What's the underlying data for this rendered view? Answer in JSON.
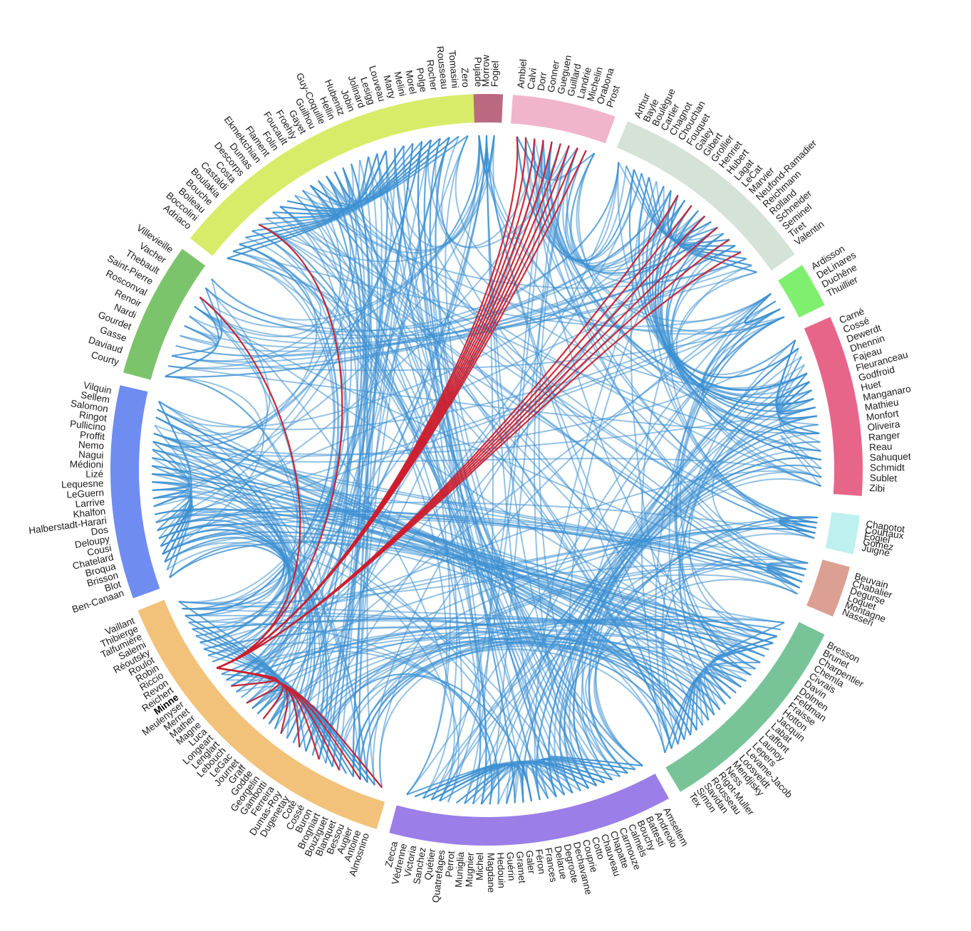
{
  "diagram": {
    "type": "hierarchical-edge-bundling",
    "edge_colors": {
      "normal": "#3d8fd1",
      "highlight": "#cc1f2e"
    },
    "highlighted_node": "Minne",
    "groups": [
      {
        "color": "#b96a80",
        "nodes": [
          "Pujade",
          "Morrow",
          "Fogiel"
        ]
      },
      {
        "color": "#f0b5cc",
        "nodes": [
          "Ambiel",
          "Calvi",
          "Dorr",
          "Gonner",
          "Gueguen",
          "Guillard",
          "Landrie",
          "Michelin",
          "Orabona",
          "Prost"
        ]
      },
      {
        "color": "#d5e2d8",
        "nodes": [
          "Arthur",
          "Bayle",
          "Boulègue",
          "Cartier",
          "Chagnot",
          "Chouchan",
          "Fouquet",
          "Galey",
          "Gibert",
          "Grollier",
          "Henriet",
          "Hubert",
          "Lagat",
          "LeCat",
          "Marvier",
          "Neufond-Ramadier",
          "Reichmann",
          "Rolland",
          "Schneider",
          "Seminel",
          "Tiret",
          "Valentin"
        ]
      },
      {
        "color": "#7ef06e",
        "nodes": [
          "Ardisson",
          "DeLinares",
          "Duchêne",
          "Thuillier"
        ]
      },
      {
        "color": "#e8658a",
        "nodes": [
          "Carné",
          "Cossé",
          "Dewerdt",
          "Dhennin",
          "Fajeau",
          "Fleuranceau",
          "Godfroid",
          "Huet",
          "Manganaro",
          "Mathieu",
          "Monfort",
          "Oliveira",
          "Ranger",
          "Reau",
          "Sahuquet",
          "Schmidt",
          "Sublet",
          "Zibi"
        ]
      },
      {
        "color": "#bff0f0",
        "nodes": [
          "Chapotot",
          "Courtaux",
          "Fogiel",
          "Gomez",
          "Juigné"
        ]
      },
      {
        "color": "#dba093",
        "nodes": [
          "Beuvain",
          "Chabalier",
          "Degurse",
          "Loquet",
          "Montagne",
          "Nasseri"
        ]
      },
      {
        "color": "#78c498",
        "nodes": [
          "Bresson",
          "Brunet",
          "Charpentier",
          "Chemla",
          "Civrais",
          "Davin",
          "Dolmen",
          "Feldman",
          "Fraisse",
          "Hotton",
          "Jacquin",
          "Labat",
          "Laffont",
          "Launoy",
          "Lepers",
          "Levame-Jacob",
          "Loosveldt",
          "Mendjisky",
          "Ness",
          "Rigot-Muller",
          "Rousseau",
          "Savidan",
          "Simon",
          "Tex"
        ]
      },
      {
        "color": "#9b7ee8",
        "nodes": [
          "Amsellem",
          "Andreolo",
          "Battesti",
          "Bouchy",
          "Calmels",
          "Carmouze",
          "Chapatte",
          "Chauveau",
          "Cotto",
          "Couprie",
          "Dechavanne",
          "Degroote",
          "Delarue",
          "Frances",
          "Féron",
          "Galer",
          "Gramet",
          "Guérin",
          "Hedouin",
          "Magdane",
          "Michel",
          "Mugnier",
          "Muniglia",
          "Perrot",
          "Quatrefages",
          "Quétier",
          "Sanchez",
          "Victoria",
          "Védrenne",
          "Zecca"
        ]
      },
      {
        "color": "#f2c27a",
        "nodes": [
          "Almosnino",
          "Antoine",
          "Augier",
          "Bessou",
          "Blanquet",
          "Bouziguet",
          "Brogniart",
          "Buron",
          "Cossé",
          "Coté",
          "Dugenetay",
          "Dumas-Roy",
          "Ferreira",
          "Gambotti",
          "Georgelin",
          "Godde",
          "Graff",
          "Journet",
          "LeGac",
          "Lebouch",
          "Lenglart",
          "Longeart",
          "Luca",
          "Magne",
          "Mather",
          "Mernet",
          "Meulenyser",
          "Minne",
          "Reichert",
          "Revon",
          "Riccio",
          "Robin",
          "Roulot",
          "Réoutsky",
          "Salemi",
          "Talfumière",
          "Thibierge",
          "Vaillant"
        ]
      },
      {
        "color": "#6f8cf0",
        "nodes": [
          "Ben-Canaan",
          "Blot",
          "Brisson",
          "Broqua",
          "Chatelard",
          "Cousi",
          "Deloupy",
          "Dos",
          "Halberstadt-Harari",
          "Khalfon",
          "Larrive",
          "LeGuern",
          "Lequesne",
          "Lizé",
          "Médioni",
          "Nagui",
          "Nemo",
          "Proffit",
          "Pullicino",
          "Ringot",
          "Salomon",
          "Sellem",
          "Vilquin"
        ]
      },
      {
        "color": "#7cc46c",
        "nodes": [
          "Courty",
          "Daviaud",
          "Gasse",
          "Gourdet",
          "Nardi",
          "Renoir",
          "Rosconval",
          "Saint-Pierre",
          "Thebault",
          "Vacher",
          "Villevieille"
        ]
      },
      {
        "color": "#d9ec6a",
        "nodes": [
          "Adriaco",
          "Boccolini",
          "Boileau",
          "Bouche",
          "Boulakia",
          "Castaldi",
          "Costa",
          "Descorps",
          "Dumas",
          "Ekmektchian",
          "Flament",
          "Folin",
          "Foucault",
          "Froehly",
          "Gayet",
          "Guilhou",
          "Guy-Coquille",
          "Hellin",
          "Hubenitz",
          "Jobin",
          "Jolinard",
          "Lesigg",
          "Louveau",
          "Marty",
          "Melini",
          "Morel",
          "Polge",
          "Rocher",
          "Rousseau",
          "Tomasini",
          "Zero"
        ]
      }
    ]
  }
}
